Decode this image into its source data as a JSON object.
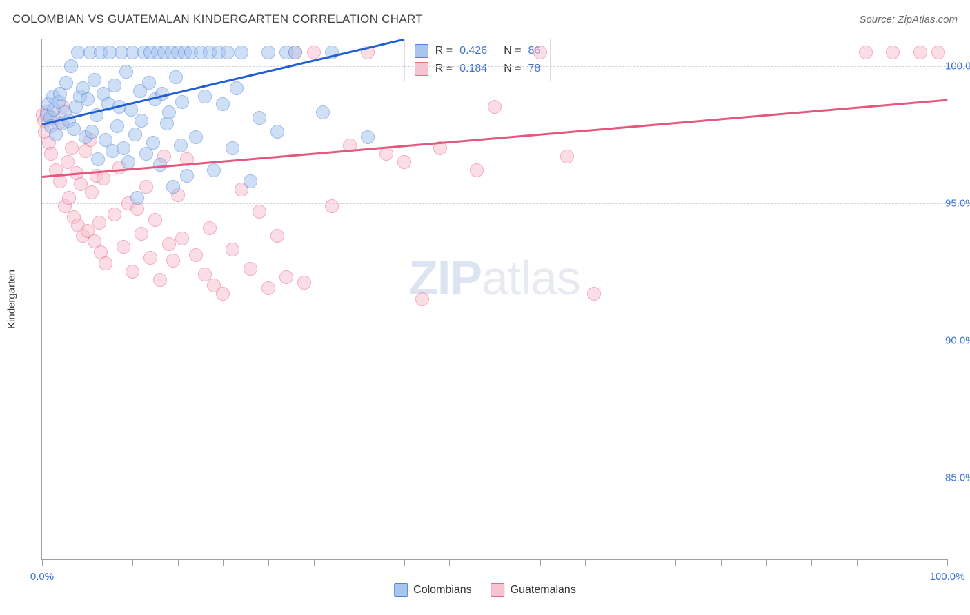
{
  "title": "COLOMBIAN VS GUATEMALAN KINDERGARTEN CORRELATION CHART",
  "source_label": "Source: ZipAtlas.com",
  "ylabel": "Kindergarten",
  "watermark_a": "ZIP",
  "watermark_b": "atlas",
  "chart": {
    "type": "scatter",
    "xlim": [
      0.0,
      100.0
    ],
    "ylim": [
      82.0,
      101.0
    ],
    "background_color": "#ffffff",
    "grid_color": "#d0d3d8",
    "axis_color": "#9aa0a6",
    "yticks": [
      {
        "value": 100.0,
        "label": "100.0%"
      },
      {
        "value": 95.0,
        "label": "95.0%"
      },
      {
        "value": 90.0,
        "label": "90.0%"
      },
      {
        "value": 85.0,
        "label": "85.0%"
      }
    ],
    "xticks": [
      0,
      5,
      10,
      15,
      20,
      25,
      30,
      35,
      40,
      45,
      50,
      55,
      60,
      65,
      70,
      75,
      80,
      85,
      90,
      95,
      100
    ],
    "xtick_labels": [
      {
        "pos": 0.0,
        "label": "0.0%"
      },
      {
        "pos": 100.0,
        "label": "100.0%"
      }
    ],
    "series": [
      {
        "name": "Colombians",
        "fill": "#a8c5ef",
        "stroke": "#4e86d8",
        "trend_color": "#1f5fd1",
        "R": "0.426",
        "N": "86",
        "trend": {
          "x1": 0.0,
          "y1": 97.9,
          "x2": 40.0,
          "y2": 101.0
        },
        "points": [
          [
            0.5,
            98.2
          ],
          [
            0.7,
            98.6
          ],
          [
            0.9,
            98.1
          ],
          [
            1.0,
            97.8
          ],
          [
            1.2,
            98.9
          ],
          [
            1.3,
            98.4
          ],
          [
            1.5,
            97.5
          ],
          [
            1.8,
            98.7
          ],
          [
            2.0,
            99.0
          ],
          [
            2.2,
            97.9
          ],
          [
            2.5,
            98.3
          ],
          [
            2.7,
            99.4
          ],
          [
            3.0,
            98.0
          ],
          [
            3.2,
            100.0
          ],
          [
            3.5,
            97.7
          ],
          [
            3.7,
            98.5
          ],
          [
            4.0,
            100.5
          ],
          [
            4.2,
            98.9
          ],
          [
            4.5,
            99.2
          ],
          [
            4.8,
            97.4
          ],
          [
            5.0,
            98.8
          ],
          [
            5.3,
            100.5
          ],
          [
            5.5,
            97.6
          ],
          [
            5.8,
            99.5
          ],
          [
            6.0,
            98.2
          ],
          [
            6.2,
            96.6
          ],
          [
            6.5,
            100.5
          ],
          [
            6.8,
            99.0
          ],
          [
            7.0,
            97.3
          ],
          [
            7.3,
            98.6
          ],
          [
            7.5,
            100.5
          ],
          [
            7.8,
            96.9
          ],
          [
            8.0,
            99.3
          ],
          [
            8.3,
            97.8
          ],
          [
            8.5,
            98.5
          ],
          [
            8.8,
            100.5
          ],
          [
            9.0,
            97.0
          ],
          [
            9.3,
            99.8
          ],
          [
            9.5,
            96.5
          ],
          [
            9.8,
            98.4
          ],
          [
            10.0,
            100.5
          ],
          [
            10.3,
            97.5
          ],
          [
            10.5,
            95.2
          ],
          [
            10.8,
            99.1
          ],
          [
            11.0,
            98.0
          ],
          [
            11.3,
            100.5
          ],
          [
            11.5,
            96.8
          ],
          [
            11.8,
            99.4
          ],
          [
            12.0,
            100.5
          ],
          [
            12.3,
            97.2
          ],
          [
            12.5,
            98.8
          ],
          [
            12.8,
            100.5
          ],
          [
            13.0,
            96.4
          ],
          [
            13.3,
            99.0
          ],
          [
            13.5,
            100.5
          ],
          [
            13.8,
            97.9
          ],
          [
            14.0,
            98.3
          ],
          [
            14.3,
            100.5
          ],
          [
            14.5,
            95.6
          ],
          [
            14.8,
            99.6
          ],
          [
            15.0,
            100.5
          ],
          [
            15.3,
            97.1
          ],
          [
            15.5,
            98.7
          ],
          [
            15.8,
            100.5
          ],
          [
            16.0,
            96.0
          ],
          [
            16.5,
            100.5
          ],
          [
            17.0,
            97.4
          ],
          [
            17.5,
            100.5
          ],
          [
            18.0,
            98.9
          ],
          [
            18.5,
            100.5
          ],
          [
            19.0,
            96.2
          ],
          [
            19.5,
            100.5
          ],
          [
            20.0,
            98.6
          ],
          [
            20.5,
            100.5
          ],
          [
            21.0,
            97.0
          ],
          [
            21.5,
            99.2
          ],
          [
            22.0,
            100.5
          ],
          [
            23.0,
            95.8
          ],
          [
            24.0,
            98.1
          ],
          [
            25.0,
            100.5
          ],
          [
            26.0,
            97.6
          ],
          [
            27.0,
            100.5
          ],
          [
            28.0,
            100.5
          ],
          [
            31.0,
            98.3
          ],
          [
            32.0,
            100.5
          ],
          [
            36.0,
            97.4
          ]
        ]
      },
      {
        "name": "Guatemalans",
        "fill": "#f7c3d0",
        "stroke": "#e86a8d",
        "trend_color": "#e5577e",
        "R": "0.184",
        "N": "78",
        "trend": {
          "x1": 0.0,
          "y1": 96.0,
          "x2": 100.0,
          "y2": 98.8
        },
        "points": [
          [
            0.1,
            98.2
          ],
          [
            0.2,
            98.0
          ],
          [
            0.3,
            97.6
          ],
          [
            0.5,
            98.3
          ],
          [
            0.8,
            97.2
          ],
          [
            1.0,
            96.8
          ],
          [
            1.2,
            98.1
          ],
          [
            1.5,
            96.2
          ],
          [
            1.8,
            97.9
          ],
          [
            2.0,
            95.8
          ],
          [
            2.3,
            98.5
          ],
          [
            2.5,
            94.9
          ],
          [
            2.8,
            96.5
          ],
          [
            3.0,
            95.2
          ],
          [
            3.3,
            97.0
          ],
          [
            3.5,
            94.5
          ],
          [
            3.8,
            96.1
          ],
          [
            4.0,
            94.2
          ],
          [
            4.3,
            95.7
          ],
          [
            4.5,
            93.8
          ],
          [
            4.8,
            96.9
          ],
          [
            5.0,
            94.0
          ],
          [
            5.3,
            97.3
          ],
          [
            5.5,
            95.4
          ],
          [
            5.8,
            93.6
          ],
          [
            6.0,
            96.0
          ],
          [
            6.3,
            94.3
          ],
          [
            6.5,
            93.2
          ],
          [
            6.8,
            95.9
          ],
          [
            7.0,
            92.8
          ],
          [
            8.0,
            94.6
          ],
          [
            8.5,
            96.3
          ],
          [
            9.0,
            93.4
          ],
          [
            9.5,
            95.0
          ],
          [
            10.0,
            92.5
          ],
          [
            10.5,
            94.8
          ],
          [
            11.0,
            93.9
          ],
          [
            11.5,
            95.6
          ],
          [
            12.0,
            93.0
          ],
          [
            12.5,
            94.4
          ],
          [
            13.0,
            92.2
          ],
          [
            13.5,
            96.7
          ],
          [
            14.0,
            93.5
          ],
          [
            14.5,
            92.9
          ],
          [
            15.0,
            95.3
          ],
          [
            15.5,
            93.7
          ],
          [
            16.0,
            96.6
          ],
          [
            17.0,
            93.1
          ],
          [
            18.0,
            92.4
          ],
          [
            18.5,
            94.1
          ],
          [
            19.0,
            92.0
          ],
          [
            20.0,
            91.7
          ],
          [
            21.0,
            93.3
          ],
          [
            22.0,
            95.5
          ],
          [
            23.0,
            92.6
          ],
          [
            24.0,
            94.7
          ],
          [
            25.0,
            91.9
          ],
          [
            26.0,
            93.8
          ],
          [
            27.0,
            92.3
          ],
          [
            28.0,
            100.5
          ],
          [
            29.0,
            92.1
          ],
          [
            30.0,
            100.5
          ],
          [
            32.0,
            94.9
          ],
          [
            34.0,
            97.1
          ],
          [
            36.0,
            100.5
          ],
          [
            38.0,
            96.8
          ],
          [
            40.0,
            96.5
          ],
          [
            42.0,
            91.5
          ],
          [
            44.0,
            97.0
          ],
          [
            48.0,
            96.2
          ],
          [
            50.0,
            98.5
          ],
          [
            55.0,
            100.5
          ],
          [
            58.0,
            96.7
          ],
          [
            61.0,
            91.7
          ],
          [
            91.0,
            100.5
          ],
          [
            94.0,
            100.5
          ],
          [
            97.0,
            100.5
          ],
          [
            99.0,
            100.5
          ]
        ]
      }
    ]
  },
  "bottom_legend": [
    {
      "label": "Colombians",
      "fill": "#a8c5ef",
      "stroke": "#4e86d8"
    },
    {
      "label": "Guatemalans",
      "fill": "#f7c3d0",
      "stroke": "#e86a8d"
    }
  ]
}
